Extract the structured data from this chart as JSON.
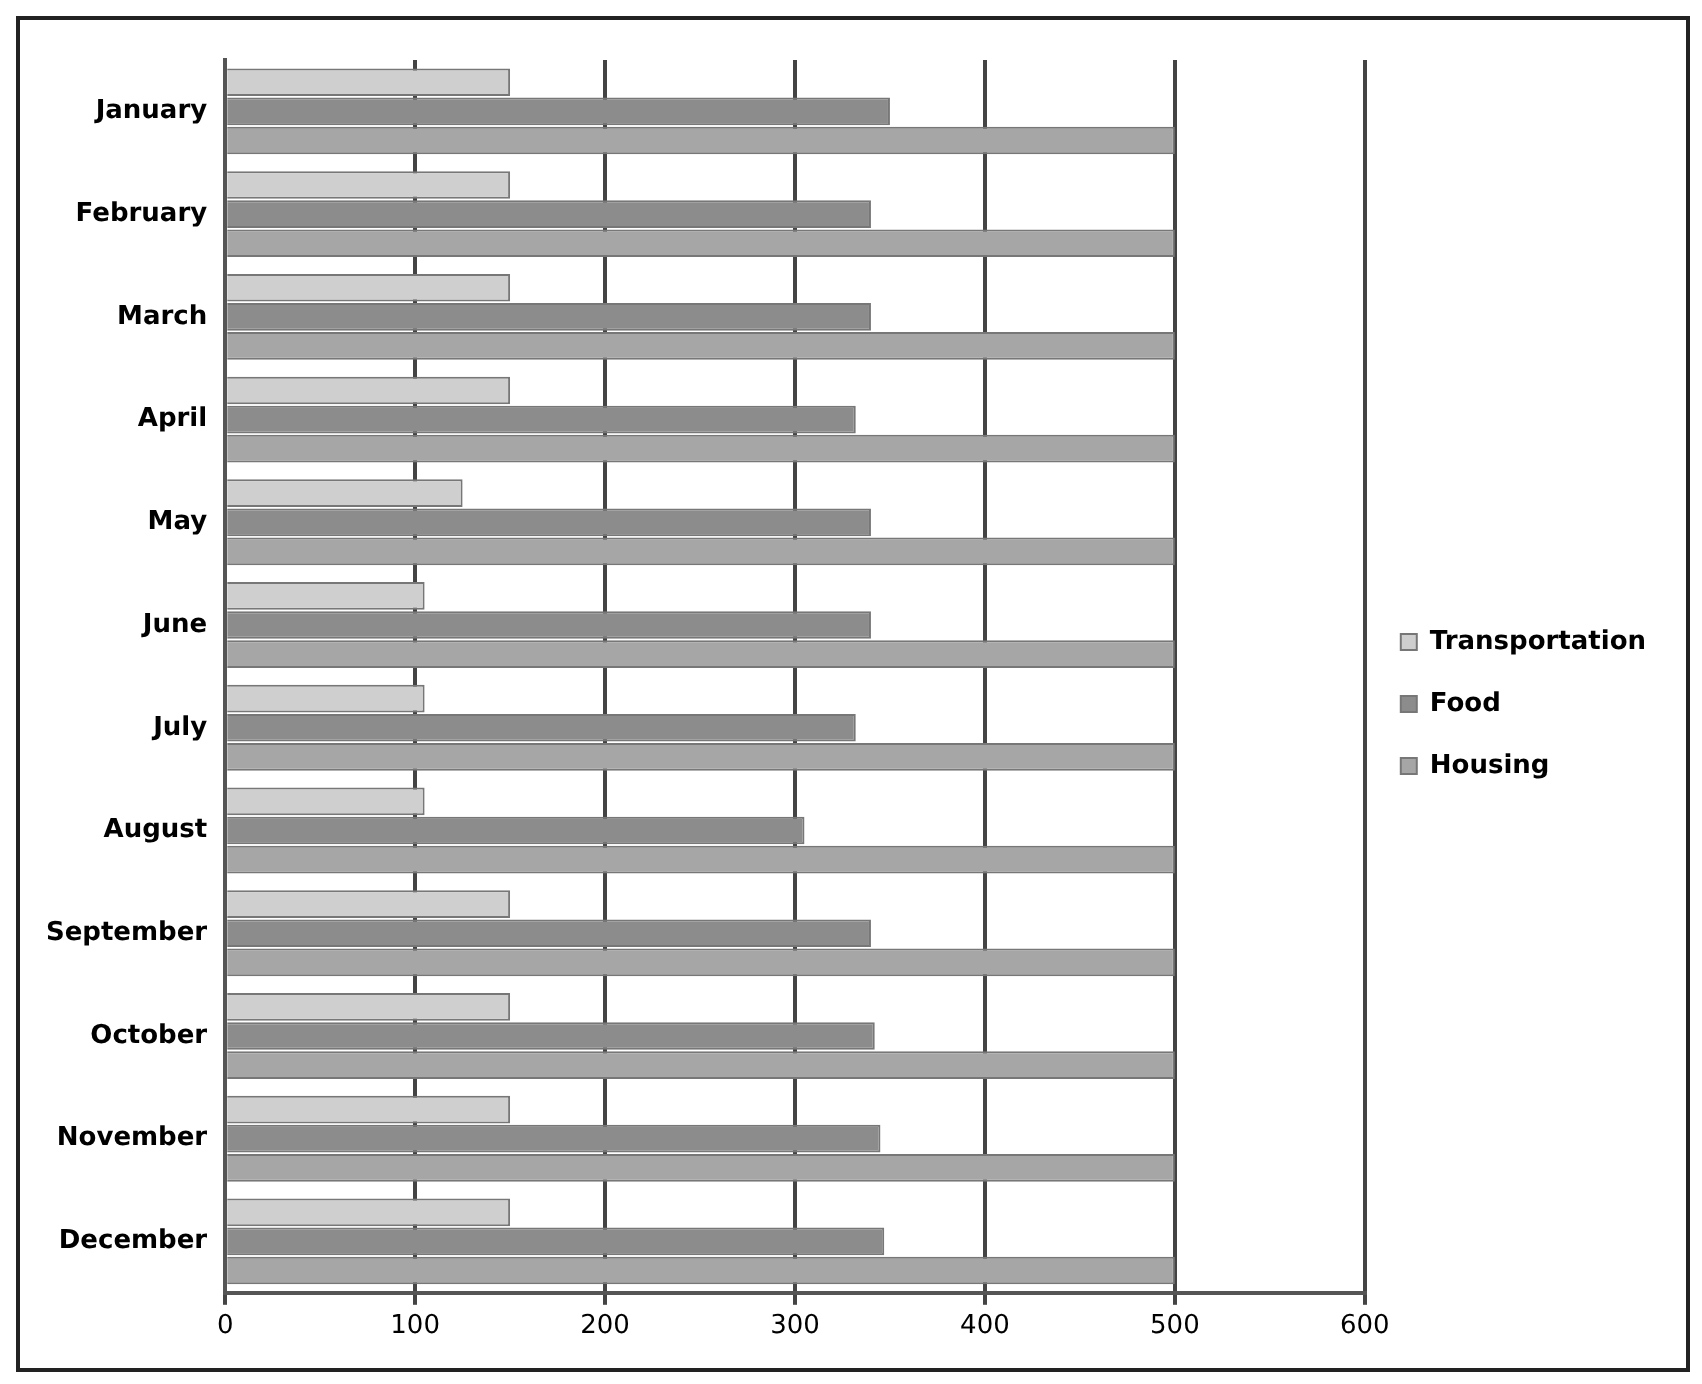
{
  "chart_data": {
    "type": "bar",
    "orientation": "horizontal",
    "categories": [
      "January",
      "February",
      "March",
      "April",
      "May",
      "June",
      "July",
      "August",
      "September",
      "October",
      "November",
      "December"
    ],
    "series": [
      {
        "name": "Transportation",
        "color": "#cfcfcf",
        "values": [
          150,
          150,
          150,
          150,
          125,
          105,
          105,
          105,
          150,
          150,
          150,
          150
        ]
      },
      {
        "name": "Food",
        "color": "#8c8c8c",
        "values": [
          350,
          340,
          340,
          332,
          340,
          340,
          332,
          305,
          340,
          342,
          345,
          347
        ]
      },
      {
        "name": "Housing",
        "color": "#a6a6a6",
        "values": [
          500,
          500,
          500,
          500,
          500,
          500,
          500,
          500,
          500,
          500,
          500,
          500
        ]
      }
    ],
    "xlim": [
      0,
      600
    ],
    "xticks": [
      0,
      100,
      200,
      300,
      400,
      500,
      600
    ],
    "grid": "x",
    "legend": "right"
  }
}
